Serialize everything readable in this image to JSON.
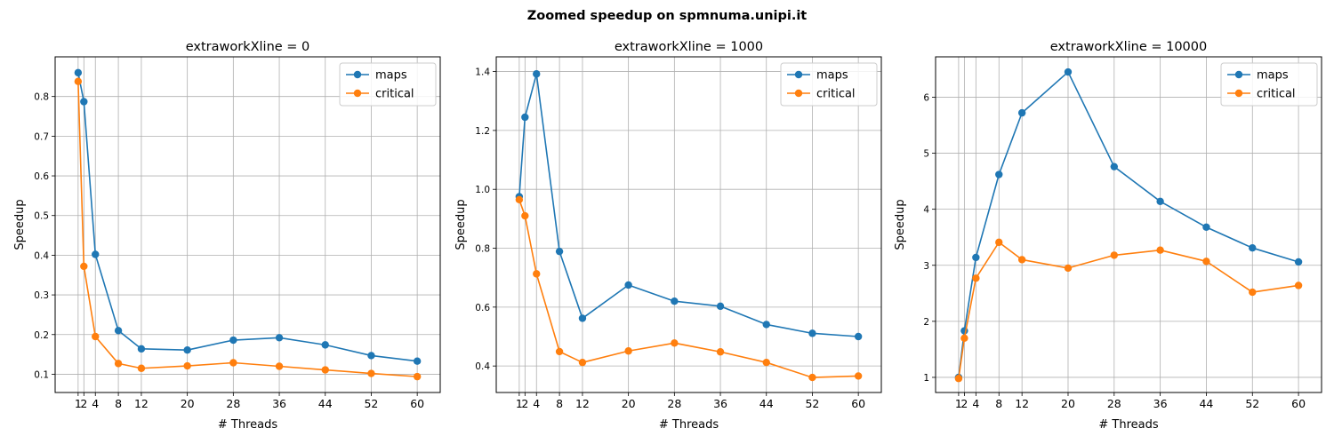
{
  "suptitle": "Zoomed speedup on spmnuma.unipi.it",
  "colors": {
    "maps": "#1f77b4",
    "critical": "#ff7f0e",
    "grid": "#b0b0b0"
  },
  "chart_data": [
    {
      "type": "line",
      "title": "extraworkXline = 0",
      "xlabel": "# Threads",
      "ylabel": "Speedup",
      "x": [
        1,
        2,
        4,
        8,
        12,
        20,
        28,
        36,
        44,
        52,
        60
      ],
      "xticks": [
        1,
        2,
        4,
        8,
        12,
        20,
        28,
        36,
        44,
        52,
        60
      ],
      "xtick_labels": [
        "1",
        "2",
        "4",
        "8",
        "12",
        "20",
        "28",
        "36",
        "44",
        "52",
        "60"
      ],
      "xlim": [
        -3,
        64
      ],
      "yticks": [
        0.1,
        0.2,
        0.3,
        0.4,
        0.5,
        0.6,
        0.7,
        0.8
      ],
      "ytick_labels": [
        "0.1",
        "0.2",
        "0.3",
        "0.4",
        "0.5",
        "0.6",
        "0.7",
        "0.8"
      ],
      "ylim": [
        0.054,
        0.9
      ],
      "grid": true,
      "legend": "top-right",
      "series": [
        {
          "name": "maps",
          "values": [
            0.86,
            0.787,
            0.402,
            0.21,
            0.164,
            0.161,
            0.186,
            0.192,
            0.174,
            0.147,
            0.133
          ]
        },
        {
          "name": "critical",
          "values": [
            0.838,
            0.372,
            0.195,
            0.127,
            0.115,
            0.121,
            0.129,
            0.12,
            0.111,
            0.102,
            0.094
          ]
        }
      ]
    },
    {
      "type": "line",
      "title": "extraworkXline = 1000",
      "xlabel": "# Threads",
      "ylabel": "Speedup",
      "x": [
        1,
        2,
        4,
        8,
        12,
        20,
        28,
        36,
        44,
        52,
        60
      ],
      "xticks": [
        1,
        2,
        4,
        8,
        12,
        20,
        28,
        36,
        44,
        52,
        60
      ],
      "xtick_labels": [
        "1",
        "2",
        "4",
        "8",
        "12",
        "20",
        "28",
        "36",
        "44",
        "52",
        "60"
      ],
      "xlim": [
        -3,
        64
      ],
      "yticks": [
        0.4,
        0.6,
        0.8,
        1.0,
        1.2,
        1.4
      ],
      "ytick_labels": [
        "0.4",
        "0.6",
        "0.8",
        "1.0",
        "1.2",
        "1.4"
      ],
      "ylim": [
        0.31,
        1.45
      ],
      "grid": true,
      "legend": "top-right",
      "series": [
        {
          "name": "maps",
          "values": [
            0.975,
            1.245,
            1.392,
            0.789,
            0.562,
            0.675,
            0.62,
            0.603,
            0.541,
            0.511,
            0.5
          ]
        },
        {
          "name": "critical",
          "values": [
            0.965,
            0.91,
            0.713,
            0.449,
            0.412,
            0.451,
            0.478,
            0.448,
            0.412,
            0.361,
            0.366
          ]
        }
      ]
    },
    {
      "type": "line",
      "title": "extraworkXline = 10000",
      "xlabel": "# Threads",
      "ylabel": "Speedup",
      "x": [
        1,
        2,
        4,
        8,
        12,
        20,
        28,
        36,
        44,
        52,
        60
      ],
      "xticks": [
        1,
        2,
        4,
        8,
        12,
        20,
        28,
        36,
        44,
        52,
        60
      ],
      "xtick_labels": [
        "1",
        "2",
        "4",
        "8",
        "12",
        "20",
        "28",
        "36",
        "44",
        "52",
        "60"
      ],
      "xlim": [
        -3,
        64
      ],
      "yticks": [
        1,
        2,
        3,
        4,
        5,
        6
      ],
      "ytick_labels": [
        "1",
        "2",
        "3",
        "4",
        "5",
        "6"
      ],
      "ylim": [
        0.73,
        6.72
      ],
      "grid": true,
      "legend": "top-right",
      "series": [
        {
          "name": "maps",
          "values": [
            1.0,
            1.83,
            3.14,
            4.62,
            5.72,
            6.45,
            4.76,
            4.14,
            3.68,
            3.31,
            3.06
          ]
        },
        {
          "name": "critical",
          "values": [
            0.98,
            1.7,
            2.77,
            3.41,
            3.1,
            2.95,
            3.18,
            3.27,
            3.07,
            2.52,
            2.64
          ]
        }
      ]
    }
  ]
}
